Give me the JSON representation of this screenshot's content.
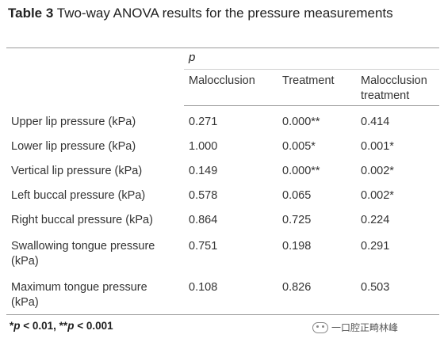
{
  "caption": {
    "label": "Table 3",
    "text": " Two-way ANOVA results for the pressure measurements"
  },
  "header": {
    "group": "p",
    "columns": [
      "Malocclusion",
      "Treatment",
      "Malocclusion treatment"
    ]
  },
  "rows": [
    {
      "label": "Upper lip pressure (kPa)",
      "values": [
        "0.271",
        "0.000**",
        "0.414"
      ]
    },
    {
      "label": "Lower lip pressure (kPa)",
      "values": [
        "1.000",
        "0.005*",
        "0.001*"
      ]
    },
    {
      "label": "Vertical lip pressure (kPa)",
      "values": [
        "0.149",
        "0.000**",
        "0.002*"
      ]
    },
    {
      "label": "Left buccal pressure (kPa)",
      "values": [
        "0.578",
        "0.065",
        "0.002*"
      ]
    },
    {
      "label": "Right buccal pressure (kPa)",
      "values": [
        "0.864",
        "0.725",
        "0.224"
      ]
    },
    {
      "label": "Swallowing tongue pressure (kPa)",
      "values": [
        "0.751",
        "0.198",
        "0.291"
      ]
    },
    {
      "label": "Maximum tongue pressure (kPa)",
      "values": [
        "0.108",
        "0.826",
        "0.503"
      ]
    }
  ],
  "footnote": {
    "p1": "p",
    "t1": " < 0.01, **",
    "p2": "p",
    "t2": " < 0.001",
    "lead": "*"
  },
  "watermark": {
    "text": "一口腔正畸林峰"
  }
}
